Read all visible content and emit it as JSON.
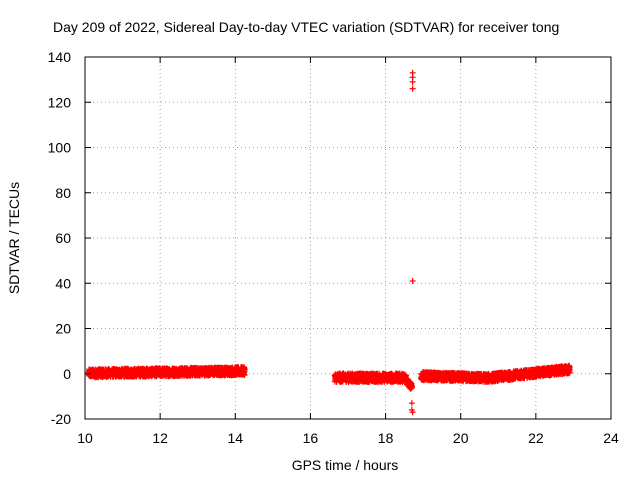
{
  "chart_data": {
    "type": "scatter",
    "title": "Day 209 of 2022, Sidereal Day-to-day VTEC variation (SDTVAR) for receiver tong",
    "xlabel": "GPS time / hours",
    "ylabel": "SDTVAR / TECUs",
    "xlim": [
      10,
      24
    ],
    "ylim": [
      -20,
      140
    ],
    "xticks": [
      10,
      12,
      14,
      16,
      18,
      20,
      22,
      24
    ],
    "yticks": [
      -20,
      0,
      20,
      40,
      60,
      80,
      100,
      120,
      140
    ],
    "grid": true,
    "marker": "plus",
    "color": "#ff0000",
    "bands": [
      {
        "x_start": 10.1,
        "x_end": 14.25,
        "y_low": -2.5,
        "y_high": 3.0,
        "shape": "flat-slight-rise"
      },
      {
        "x_start": 16.65,
        "x_end": 18.55,
        "y_low": -5.0,
        "y_high": 1.5,
        "shape": "flat"
      },
      {
        "x_start": 18.5,
        "x_end": 18.7,
        "y_low": -8.0,
        "y_high": -1.0,
        "shape": "dip"
      },
      {
        "x_start": 18.95,
        "x_end": 22.9,
        "y_low": -4.0,
        "y_high": 4.5,
        "shape": "dip-then-rise"
      }
    ],
    "outliers": [
      {
        "x": 18.72,
        "y": 133
      },
      {
        "x": 18.72,
        "y": 131
      },
      {
        "x": 18.72,
        "y": 129
      },
      {
        "x": 18.72,
        "y": 126
      },
      {
        "x": 18.72,
        "y": 41
      },
      {
        "x": 18.7,
        "y": -13
      },
      {
        "x": 18.7,
        "y": -16
      },
      {
        "x": 18.72,
        "y": -17
      }
    ]
  }
}
